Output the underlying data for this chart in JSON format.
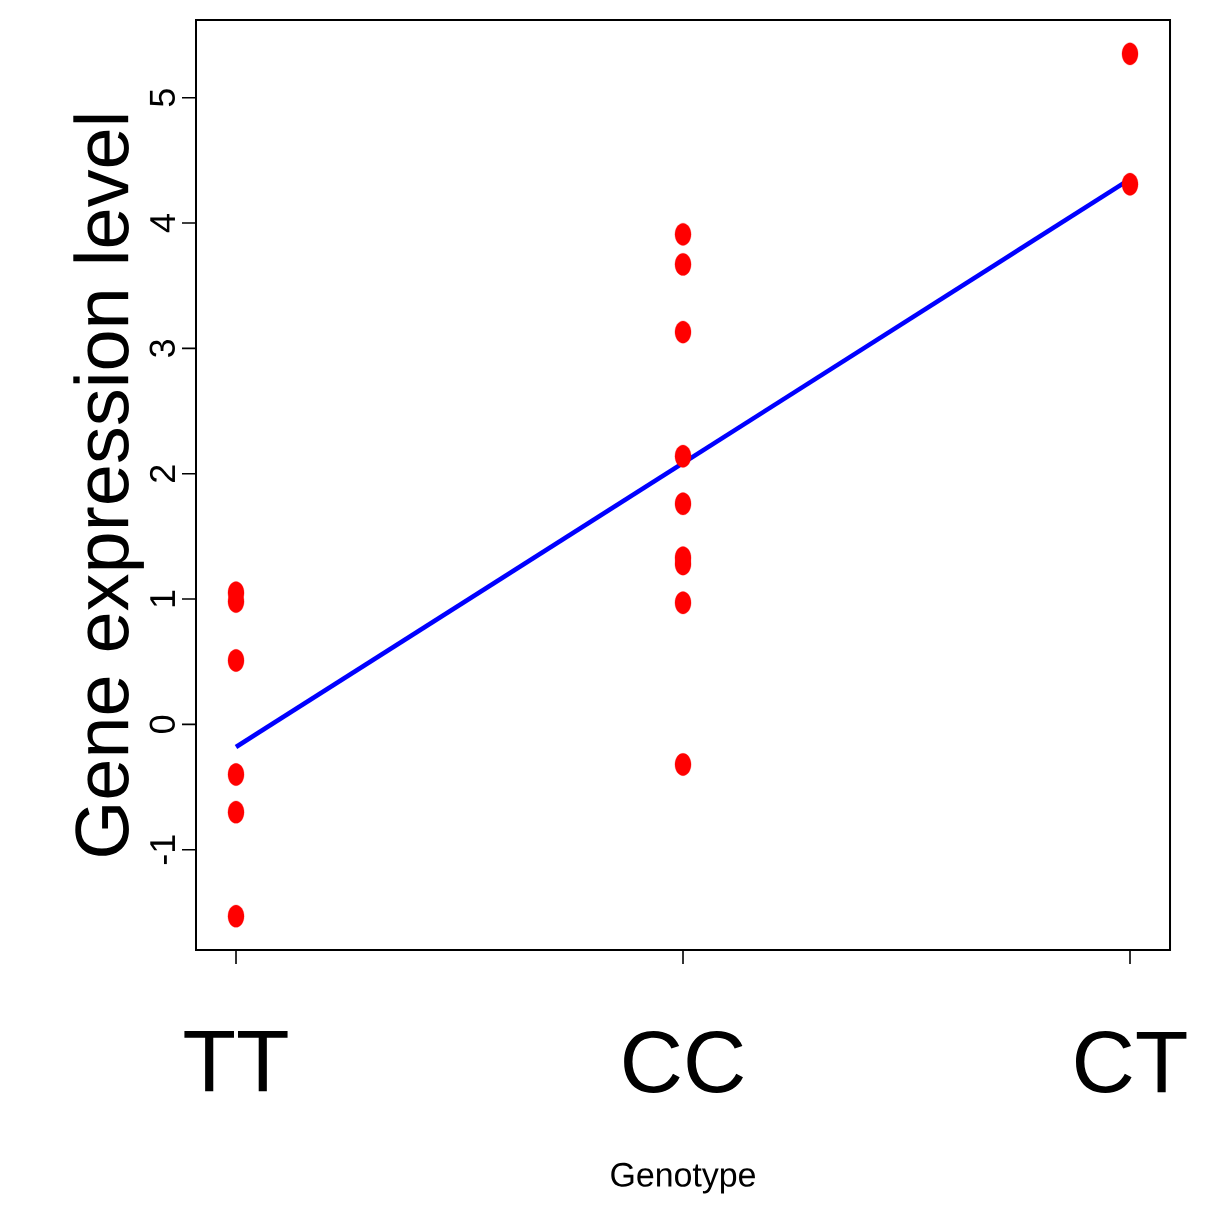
{
  "chart_data": {
    "type": "scatter",
    "xlabel": "Genotype",
    "ylabel": "Gene expression level",
    "categories": [
      "TT",
      "CC",
      "CT"
    ],
    "ylim": [
      -1.8,
      5.62
    ],
    "yticks": [
      -1,
      0,
      1,
      2,
      3,
      4,
      5
    ],
    "grid": false,
    "series": [
      {
        "color": "#ff0000",
        "marker": "circle",
        "x": [
          "TT",
          "TT",
          "TT",
          "TT",
          "TT",
          "TT",
          "CC",
          "CC",
          "CC",
          "CC",
          "CC",
          "CC",
          "CC",
          "CC",
          "CC",
          "CT",
          "CT"
        ],
        "values": [
          1.05,
          0.98,
          0.51,
          -0.4,
          -0.7,
          -1.53,
          3.91,
          3.67,
          3.13,
          2.14,
          1.76,
          1.33,
          1.28,
          0.97,
          -0.32,
          5.35,
          4.31
        ]
      },
      {
        "type": "line",
        "color": "#0000ff",
        "marker": "none",
        "x": [
          "TT",
          "CT"
        ],
        "values": [
          -0.18,
          4.35
        ]
      }
    ]
  }
}
